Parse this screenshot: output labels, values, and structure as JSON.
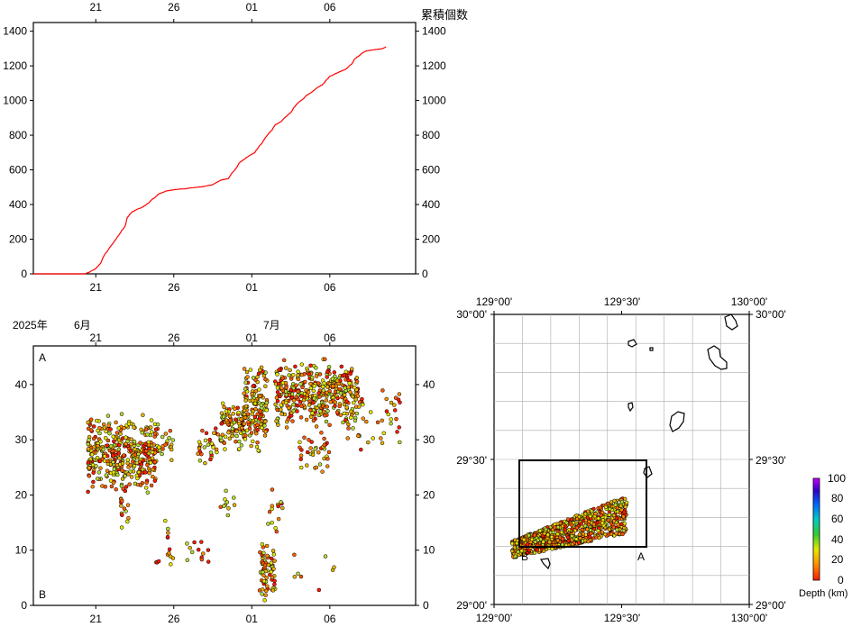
{
  "chart_data": [
    {
      "type": "line",
      "ylabel": "累積個数",
      "ylim": [
        0,
        1450
      ],
      "yticks": [
        0,
        200,
        400,
        600,
        800,
        1000,
        1200,
        1400
      ],
      "ytick_labels": [
        "0",
        "200",
        "400",
        "600",
        "800",
        "1000",
        "1200",
        "1400"
      ],
      "xlim_days": [
        -4,
        20.5
      ],
      "xticks_days": [
        0,
        5,
        10,
        15
      ],
      "xtick_labels": [
        "21",
        "26",
        "01",
        "06"
      ],
      "line_color": "#ff0000",
      "series": [
        {
          "x": [
            -4,
            -1.8,
            -0.7,
            -0.4,
            0,
            0.3,
            0.5,
            0.8,
            1,
            1.3,
            1.6,
            1.9,
            2,
            2.2,
            2.3,
            2.6,
            3,
            3.4,
            3.6,
            3.8,
            4,
            4.3,
            4.5,
            5,
            5.5,
            5.7,
            6,
            6.5,
            7,
            7.5,
            8,
            8.5,
            9,
            9.2,
            9.5,
            9.8,
            10,
            10.2,
            10.5,
            11,
            11.3,
            11.5,
            11.9,
            12.1,
            12.5,
            12.7,
            13,
            13.3,
            13.5,
            13.8,
            14,
            14.2,
            14.5,
            14.8,
            15,
            15.5,
            16,
            16.4,
            16.6,
            16.9,
            17.1,
            17.3,
            17.6,
            18,
            18.4,
            18.6
          ],
          "y": [
            0,
            0,
            0,
            10,
            30,
            60,
            100,
            140,
            165,
            200,
            240,
            280,
            320,
            345,
            355,
            370,
            385,
            410,
            430,
            440,
            460,
            470,
            478,
            485,
            490,
            490,
            495,
            500,
            505,
            515,
            540,
            550,
            610,
            640,
            660,
            680,
            690,
            700,
            740,
            800,
            830,
            860,
            880,
            900,
            930,
            960,
            990,
            1010,
            1030,
            1045,
            1060,
            1075,
            1090,
            1120,
            1140,
            1160,
            1180,
            1210,
            1240,
            1260,
            1275,
            1285,
            1290,
            1295,
            1300,
            1310
          ]
        }
      ]
    },
    {
      "type": "scatter",
      "xlim_days": [
        -4,
        20.5
      ],
      "ylim": [
        0,
        47
      ],
      "yticks": [
        0,
        10,
        20,
        30,
        40
      ],
      "ytick_labels": [
        "0",
        "10",
        "20",
        "30",
        "40"
      ],
      "xticks_days": [
        0,
        5,
        10,
        15
      ],
      "xtick_labels": [
        "21",
        "26",
        "01",
        "06"
      ],
      "year_label": "2025年",
      "month_labels": [
        {
          "day": 0,
          "text": "6月"
        },
        {
          "day": 10,
          "text": "7月"
        }
      ],
      "top_label": "A",
      "bottom_label": "B",
      "clusters": [
        {
          "x0": -0.5,
          "x1": 4.0,
          "y0": 20,
          "y1": 35,
          "n": 380
        },
        {
          "x0": 1.6,
          "x1": 2.1,
          "y0": 12,
          "y1": 22,
          "n": 14
        },
        {
          "x0": 3.8,
          "x1": 4.2,
          "y0": 7.5,
          "y1": 8.5,
          "n": 3
        },
        {
          "x0": 4.0,
          "x1": 5.0,
          "y0": 26,
          "y1": 32,
          "n": 18
        },
        {
          "x0": 4.2,
          "x1": 4.7,
          "y0": 11,
          "y1": 16,
          "n": 5
        },
        {
          "x0": 4.6,
          "x1": 5.0,
          "y0": 7,
          "y1": 11,
          "n": 6
        },
        {
          "x0": 5.5,
          "x1": 7.5,
          "y0": 6.5,
          "y1": 13,
          "n": 12
        },
        {
          "x0": 6.5,
          "x1": 8.0,
          "y0": 24,
          "y1": 33,
          "n": 30
        },
        {
          "x0": 8.0,
          "x1": 9.5,
          "y0": 28,
          "y1": 37,
          "n": 90
        },
        {
          "x0": 8.0,
          "x1": 9.0,
          "y0": 11,
          "y1": 23,
          "n": 10
        },
        {
          "x0": 9.5,
          "x1": 11.0,
          "y0": 27,
          "y1": 44,
          "n": 140
        },
        {
          "x0": 10.5,
          "x1": 11.5,
          "y0": 0.5,
          "y1": 12,
          "n": 70
        },
        {
          "x0": 11.0,
          "x1": 12.0,
          "y0": 12,
          "y1": 22,
          "n": 14
        },
        {
          "x0": 11.5,
          "x1": 15.0,
          "y0": 32,
          "y1": 45,
          "n": 260
        },
        {
          "x0": 13.0,
          "x1": 15.0,
          "y0": 23,
          "y1": 32,
          "n": 35
        },
        {
          "x0": 15.0,
          "x1": 16.8,
          "y0": 33,
          "y1": 44,
          "n": 120
        },
        {
          "x0": 16.0,
          "x1": 19.5,
          "y0": 27,
          "y1": 41,
          "n": 45
        },
        {
          "x0": 12.5,
          "x1": 15.5,
          "y0": 2,
          "y1": 11,
          "n": 8
        }
      ]
    },
    {
      "type": "map",
      "lon_ticks": [
        "129°00'",
        "129°30'",
        "130°00'"
      ],
      "lat_ticks": [
        "30°00'",
        "29°30'",
        "29°00'"
      ],
      "lon_range": [
        129.0,
        130.0
      ],
      "lat_range": [
        29.0,
        30.0
      ],
      "box_label_A": "A",
      "box_label_B": "B",
      "cluster": {
        "lon0": 129.07,
        "lon1": 129.52,
        "lat0": 29.15,
        "lat1": 29.38,
        "n": 900
      }
    }
  ],
  "colorbar": {
    "label": "Depth (km)",
    "ticks": [
      "100",
      "80",
      "60",
      "40",
      "20",
      "0"
    ],
    "stops": [
      "#ff1a00",
      "#ff8c00",
      "#e6e600",
      "#32cd32",
      "#00c8c8",
      "#0064ff",
      "#3200c8",
      "#c800ff"
    ]
  }
}
